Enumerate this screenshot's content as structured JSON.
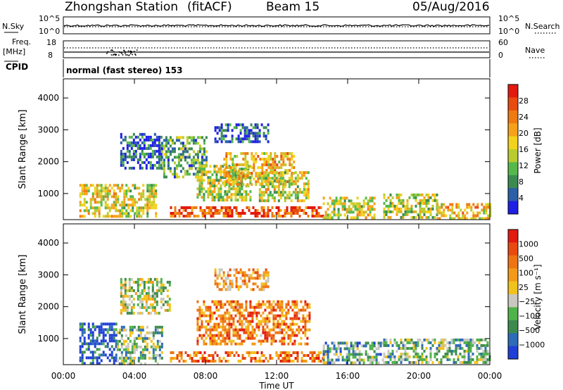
{
  "header": {
    "station": "Zhongshan Station",
    "mode": "(fitACF)",
    "beam": "Beam 15",
    "date": "05/Aug/2016"
  },
  "top_panels": {
    "noise": {
      "left_label": "N.Sky",
      "right_label": "N.Search",
      "left_ticks": [
        "10^5",
        "10^0"
      ],
      "right_ticks": [
        "10^5",
        "10^0"
      ]
    },
    "freq": {
      "left_label": "Freq.",
      "left_unit": "[MHz]",
      "right_label": "Nave",
      "left_ticks": [
        "18",
        "8"
      ],
      "right_ticks": [
        "60",
        "0"
      ]
    },
    "cpid": {
      "label": "CPID",
      "text": "normal (fast stereo) 153"
    }
  },
  "chart_data": [
    {
      "type": "heatmap",
      "title": "",
      "xlabel": "Time UT",
      "ylabel": "Slant Range [km]",
      "x_ticks": [
        "00:00",
        "04:00",
        "08:00",
        "12:00",
        "16:00",
        "20:00",
        "00:00"
      ],
      "xlim": [
        0,
        24
      ],
      "ylim": [
        180,
        4600
      ],
      "y_ticks": [
        1000,
        2000,
        3000,
        4000
      ],
      "colorbar": {
        "label": "Power [dB]",
        "ticks": [
          "4",
          "8",
          "12",
          "16",
          "20",
          "24",
          "28"
        ],
        "colors": [
          "#1f1fe6",
          "#2b5fa8",
          "#3b8a4f",
          "#55b94a",
          "#b8cc2f",
          "#f2d21c",
          "#f5a21a",
          "#ee7a12",
          "#e84a10",
          "#e31a10"
        ]
      },
      "regions": [
        {
          "t0": 0.9,
          "t1": 2.9,
          "r0": 250,
          "r1": 1300,
          "level": 0.55
        },
        {
          "t0": 2.9,
          "t1": 5.2,
          "r0": 250,
          "r1": 1300,
          "level": 0.5
        },
        {
          "t0": 3.2,
          "t1": 5.5,
          "r0": 1800,
          "r1": 2900,
          "level": 0.15
        },
        {
          "t0": 5.5,
          "t1": 8.0,
          "r0": 1500,
          "r1": 2800,
          "level": 0.3
        },
        {
          "t0": 6.0,
          "t1": 14.6,
          "r0": 250,
          "r1": 600,
          "level": 0.85
        },
        {
          "t0": 7.5,
          "t1": 10.5,
          "r0": 800,
          "r1": 1900,
          "level": 0.45
        },
        {
          "t0": 9.0,
          "t1": 13.0,
          "r0": 1300,
          "r1": 2300,
          "level": 0.6
        },
        {
          "t0": 11.0,
          "t1": 13.8,
          "r0": 800,
          "r1": 1700,
          "level": 0.5
        },
        {
          "t0": 8.5,
          "t1": 11.5,
          "r0": 2600,
          "r1": 3200,
          "level": 0.15
        },
        {
          "t0": 14.6,
          "t1": 17.5,
          "r0": 250,
          "r1": 900,
          "level": 0.5
        },
        {
          "t0": 18.0,
          "t1": 21.0,
          "r0": 250,
          "r1": 1000,
          "level": 0.45
        },
        {
          "t0": 21.0,
          "t1": 24.0,
          "r0": 250,
          "r1": 700,
          "level": 0.6
        }
      ]
    },
    {
      "type": "heatmap",
      "title": "",
      "xlabel": "Time UT",
      "ylabel": "Slant Range [km]",
      "x_ticks": [
        "00:00",
        "04:00",
        "08:00",
        "12:00",
        "16:00",
        "20:00",
        "00:00"
      ],
      "xlim": [
        0,
        24
      ],
      "ylim": [
        180,
        4600
      ],
      "y_ticks": [
        1000,
        2000,
        3000,
        4000
      ],
      "colorbar": {
        "label": "Velocity [m s⁻¹]",
        "ticks": [
          "1000",
          "500",
          "100",
          "25",
          "−25",
          "−100",
          "−500",
          "−1000"
        ],
        "colors": [
          "#1f3fd6",
          "#2e6bb8",
          "#3d8a4f",
          "#4fb34a",
          "#c8c8c0",
          "#f2c21c",
          "#f39a1a",
          "#ee7412",
          "#e84a10",
          "#e31a10"
        ]
      },
      "regions": [
        {
          "t0": 0.9,
          "t1": 3.0,
          "r0": 250,
          "r1": 1500,
          "level": 0.1
        },
        {
          "t0": 3.0,
          "t1": 5.5,
          "r0": 250,
          "r1": 1400,
          "level": 0.35
        },
        {
          "t0": 3.2,
          "t1": 6.0,
          "r0": 1800,
          "r1": 2900,
          "level": 0.45
        },
        {
          "t0": 6.0,
          "t1": 14.6,
          "r0": 250,
          "r1": 600,
          "level": 0.75
        },
        {
          "t0": 7.5,
          "t1": 13.8,
          "r0": 800,
          "r1": 2200,
          "level": 0.72
        },
        {
          "t0": 8.5,
          "t1": 11.5,
          "r0": 2500,
          "r1": 3200,
          "level": 0.65
        },
        {
          "t0": 14.6,
          "t1": 18.0,
          "r0": 250,
          "r1": 900,
          "level": 0.3
        },
        {
          "t0": 18.0,
          "t1": 24.0,
          "r0": 250,
          "r1": 1000,
          "level": 0.35
        }
      ]
    }
  ],
  "axis_title": "Time UT"
}
